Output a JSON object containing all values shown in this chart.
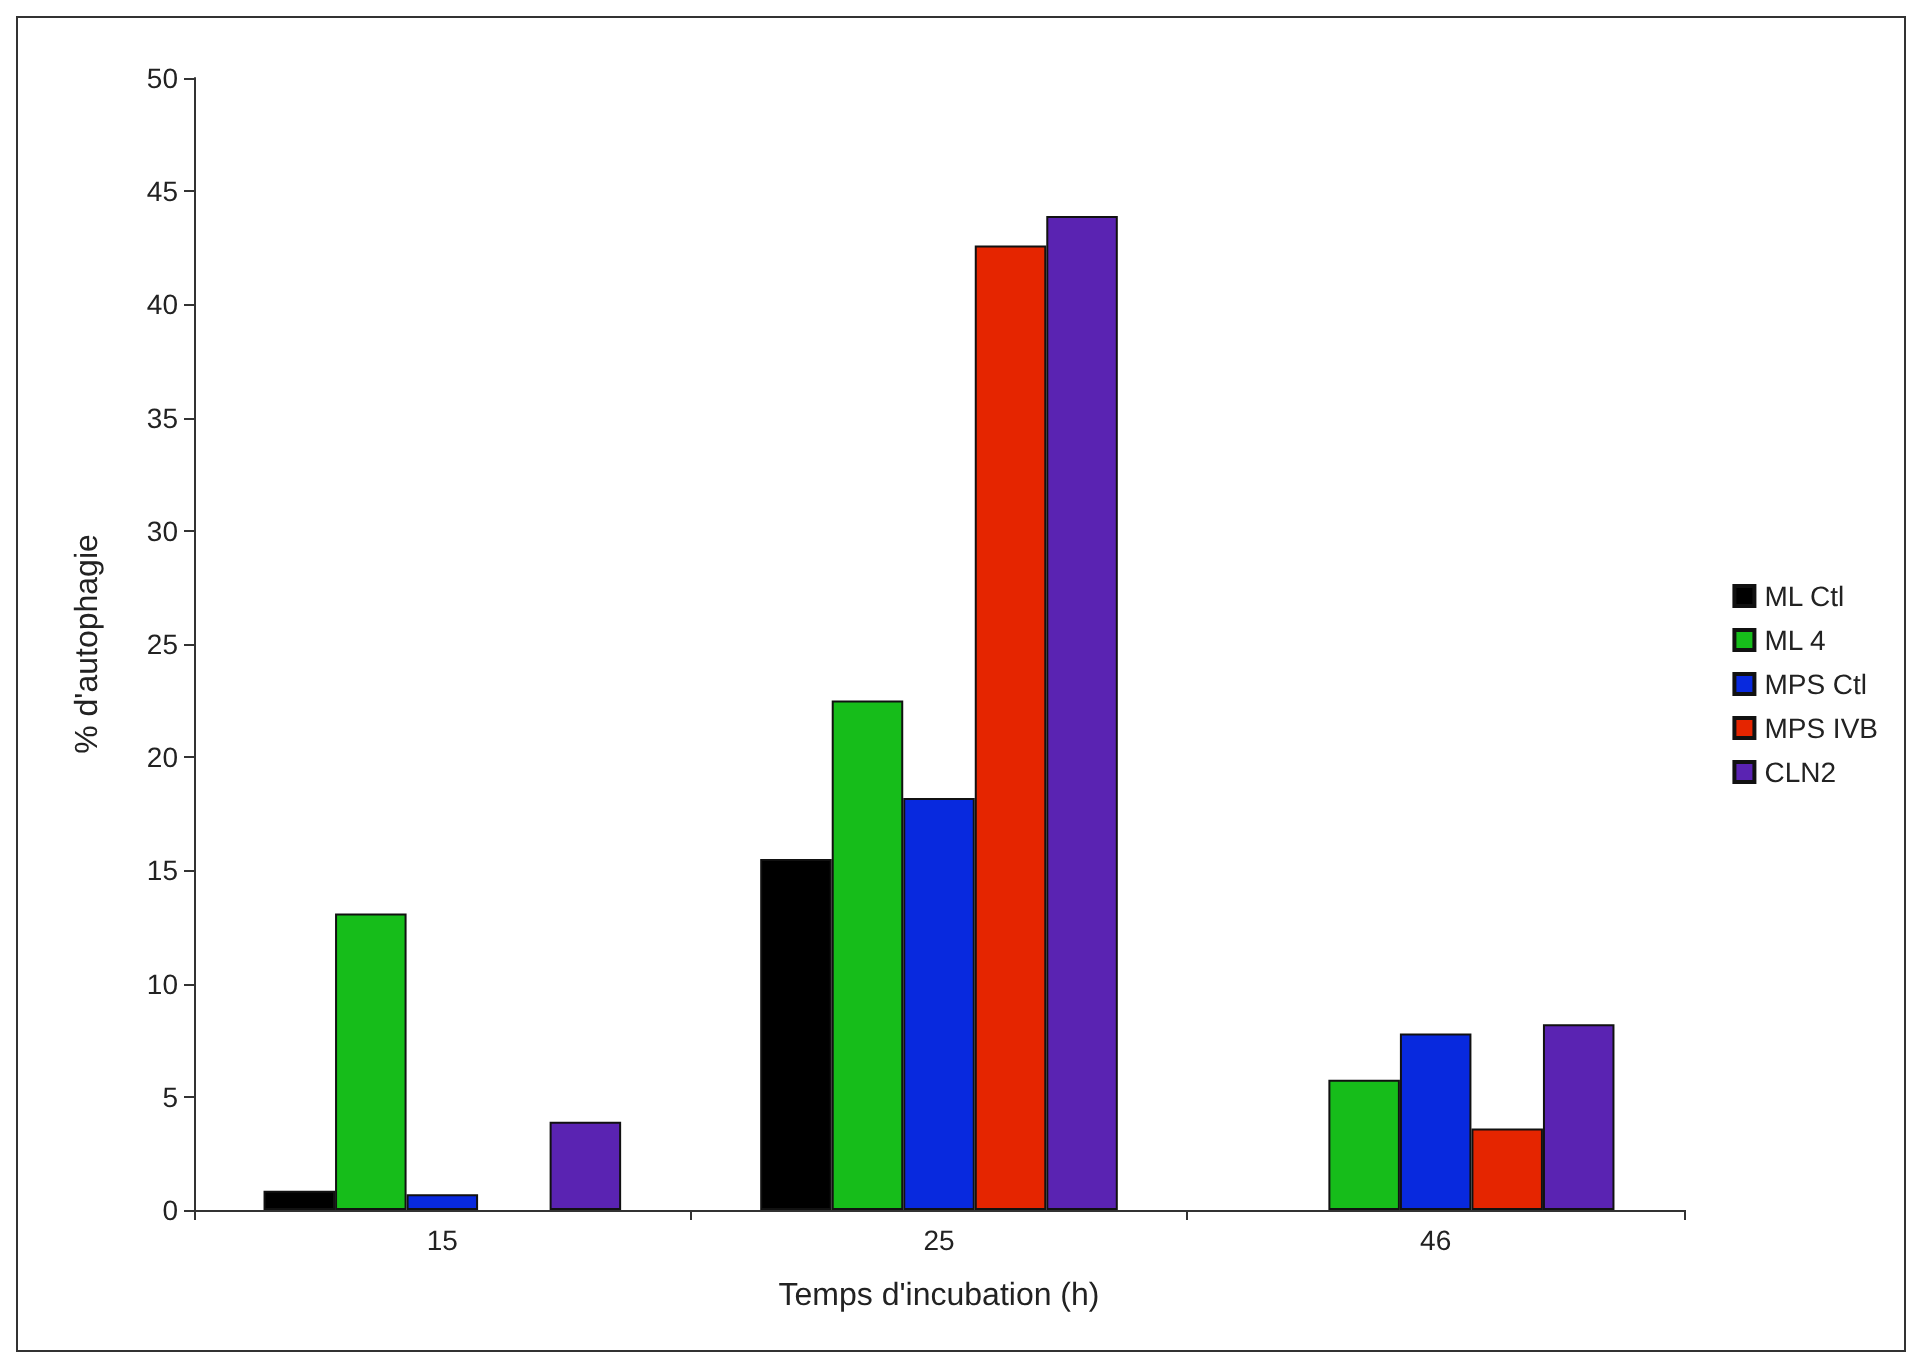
{
  "chart_data": {
    "type": "bar",
    "xlabel": "Temps d'incubation (h)",
    "ylabel": "% d'autophagie",
    "categories": [
      "15",
      "25",
      "46"
    ],
    "series": [
      {
        "name": "ML Ctl",
        "color": "#000000",
        "values": [
          0.85,
          15.5,
          null
        ]
      },
      {
        "name": "ML 4",
        "color": "#16bd1a",
        "values": [
          13.1,
          22.5,
          5.75
        ]
      },
      {
        "name": "MPS Ctl",
        "color": "#0829de",
        "values": [
          0.7,
          18.2,
          7.8
        ]
      },
      {
        "name": "MPS IVB",
        "color": "#e52500",
        "values": [
          null,
          42.6,
          3.6
        ]
      },
      {
        "name": "CLN2",
        "color": "#5a23b2",
        "values": [
          3.9,
          43.9,
          8.2
        ]
      }
    ],
    "ylim": [
      0,
      50
    ],
    "yticks": [
      0,
      5,
      10,
      15,
      20,
      25,
      30,
      35,
      40,
      45,
      50
    ],
    "grid": false,
    "legend": "right"
  }
}
